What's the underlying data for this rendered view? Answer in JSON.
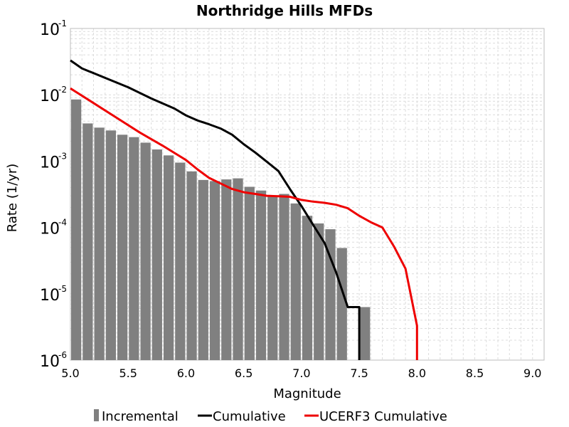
{
  "chart_data": {
    "type": "bar",
    "title": "Northridge Hills MFDs",
    "xlabel": "Magnitude",
    "ylabel": "Rate (1/yr)",
    "xlim": [
      5.0,
      9.1
    ],
    "ylim": [
      1e-06,
      0.1
    ],
    "y_scale": "log",
    "grid": true,
    "legend_placement": "bottom",
    "x_ticks": [
      "5.0",
      "5.5",
      "6.0",
      "6.5",
      "7.0",
      "7.5",
      "8.0",
      "8.5",
      "9.0"
    ],
    "y_ticks": [
      {
        "base": "10",
        "exp": "-1"
      },
      {
        "base": "10",
        "exp": "-2"
      },
      {
        "base": "10",
        "exp": "-3"
      },
      {
        "base": "10",
        "exp": "-4"
      },
      {
        "base": "10",
        "exp": "-5"
      },
      {
        "base": "10",
        "exp": "-6"
      }
    ],
    "colors": {
      "incremental": "#808080",
      "cumulative": "#000000",
      "ucerf3": "#ee0000",
      "grid": "#dcdcdc"
    },
    "series": [
      {
        "name": "Incremental",
        "kind": "bar",
        "bin_width": 0.1,
        "x": [
          5.05,
          5.15,
          5.25,
          5.35,
          5.45,
          5.55,
          5.65,
          5.75,
          5.85,
          5.95,
          6.05,
          6.15,
          6.25,
          6.35,
          6.45,
          6.55,
          6.65,
          6.75,
          6.85,
          6.95,
          7.05,
          7.15,
          7.25,
          7.35,
          7.55
        ],
        "values": [
          0.0085,
          0.0037,
          0.0032,
          0.0029,
          0.0025,
          0.0023,
          0.0019,
          0.0015,
          0.00122,
          0.00095,
          0.0007,
          0.00052,
          0.0005,
          0.00053,
          0.00055,
          0.00041,
          0.00036,
          0.00029,
          0.00032,
          0.00023,
          0.00015,
          0.000115,
          9.4e-05,
          4.9e-05,
          6.3e-06
        ]
      },
      {
        "name": "Cumulative",
        "kind": "line",
        "x": [
          5.0,
          5.1,
          5.3,
          5.5,
          5.7,
          5.9,
          6.0,
          6.1,
          6.2,
          6.3,
          6.4,
          6.5,
          6.6,
          6.7,
          6.8,
          6.9,
          7.0,
          7.1,
          7.2,
          7.3,
          7.4,
          7.5,
          7.5
        ],
        "values": [
          0.033,
          0.025,
          0.018,
          0.013,
          0.0088,
          0.0062,
          0.0049,
          0.0041,
          0.0036,
          0.0031,
          0.0025,
          0.0018,
          0.00135,
          0.00098,
          0.00071,
          0.00038,
          0.00021,
          0.00011,
          5.8e-05,
          2.1e-05,
          6.3e-06,
          6.3e-06,
          1e-06
        ]
      },
      {
        "name": "UCERF3 Cumulative",
        "kind": "line",
        "x": [
          5.0,
          5.2,
          5.4,
          5.6,
          5.8,
          6.0,
          6.1,
          6.2,
          6.3,
          6.4,
          6.5,
          6.6,
          6.7,
          6.8,
          6.9,
          7.0,
          7.1,
          7.2,
          7.3,
          7.4,
          7.5,
          7.6,
          7.7,
          7.8,
          7.9,
          8.0,
          8.0
        ],
        "values": [
          0.0125,
          0.0075,
          0.0045,
          0.0027,
          0.0017,
          0.00104,
          0.00075,
          0.00056,
          0.00046,
          0.00038,
          0.00034,
          0.00032,
          0.0003,
          0.000295,
          0.00029,
          0.00026,
          0.000245,
          0.000235,
          0.00022,
          0.000195,
          0.00015,
          0.00012,
          0.0001,
          5.2e-05,
          2.4e-05,
          3.3e-06,
          1e-06
        ]
      }
    ]
  }
}
